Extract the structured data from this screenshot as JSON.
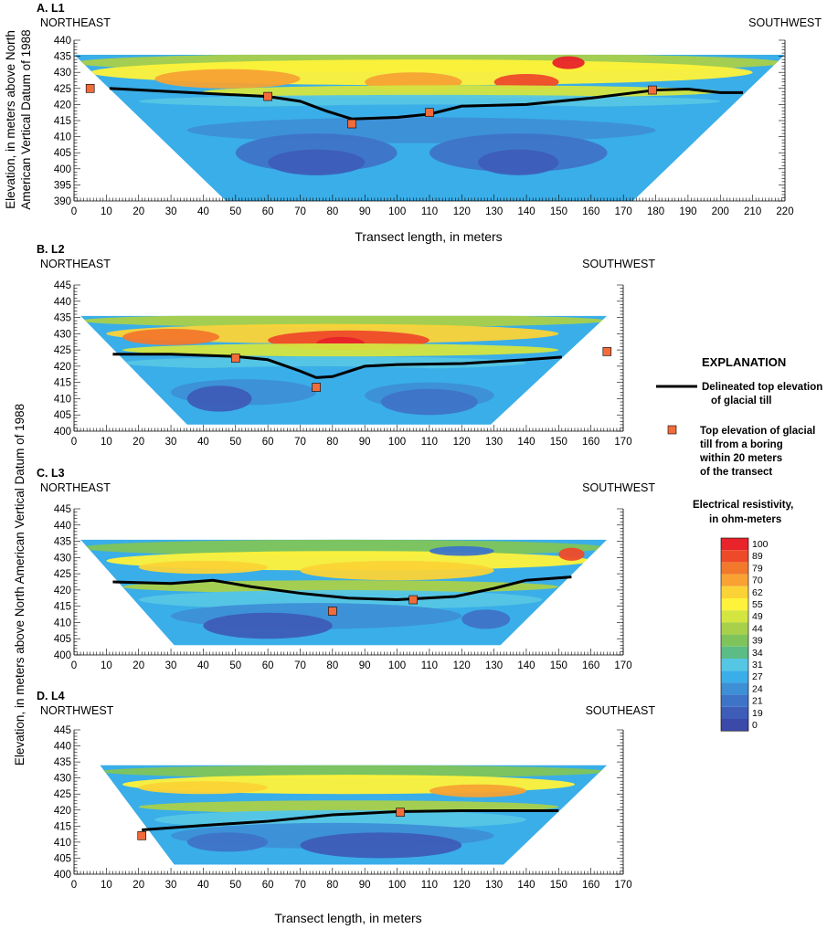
{
  "panels": [
    {
      "id": "A",
      "letter": "A.",
      "label": "L1",
      "left_direction": "NORTHEAST",
      "right_direction": "SOUTHWEST",
      "x_ticks": [
        0,
        10,
        20,
        30,
        40,
        50,
        60,
        70,
        80,
        90,
        100,
        110,
        120,
        130,
        140,
        150,
        160,
        170,
        180,
        190,
        200,
        210,
        220
      ],
      "y_ticks": [
        390,
        395,
        400,
        405,
        410,
        415,
        420,
        425,
        430,
        435,
        440
      ]
    },
    {
      "id": "B",
      "letter": "B.",
      "label": "L2",
      "left_direction": "NORTHEAST",
      "right_direction": "SOUTHWEST",
      "x_ticks": [
        0,
        10,
        20,
        30,
        40,
        50,
        60,
        70,
        80,
        90,
        100,
        110,
        120,
        130,
        140,
        150,
        160,
        170
      ],
      "y_ticks": [
        400,
        405,
        410,
        415,
        420,
        425,
        430,
        435,
        440,
        445
      ]
    },
    {
      "id": "C",
      "letter": "C.",
      "label": "L3",
      "left_direction": "NORTHEAST",
      "right_direction": "SOUTHWEST",
      "x_ticks": [
        0,
        10,
        20,
        30,
        40,
        50,
        60,
        70,
        80,
        90,
        100,
        110,
        120,
        130,
        140,
        150,
        160,
        170
      ],
      "y_ticks": [
        400,
        405,
        410,
        415,
        420,
        425,
        430,
        435,
        440,
        445
      ]
    },
    {
      "id": "D",
      "letter": "D.",
      "label": "L4",
      "left_direction": "NORTHWEST",
      "right_direction": "SOUTHEAST",
      "x_ticks": [
        0,
        10,
        20,
        30,
        40,
        50,
        60,
        70,
        80,
        90,
        100,
        110,
        120,
        130,
        140,
        150,
        160,
        170
      ],
      "y_ticks": [
        400,
        405,
        410,
        415,
        420,
        425,
        430,
        435,
        440,
        445
      ]
    }
  ],
  "axis_labels": {
    "x_label": "Transect length, in meters",
    "y_label_a_line1": "Elevation, in meters above North",
    "y_label_a_line2": "American Vertical Datum of 1988",
    "y_label_bcd": "Elevation, in meters above North American Vertical Datum of 1988"
  },
  "legend": {
    "title": "EXPLANATION",
    "line_label_1": "Delineated top elevation",
    "line_label_2": "of glacial till",
    "marker_label_1": "Top elevation of glacial",
    "marker_label_2": "till from a boring",
    "marker_label_3": "within 20 meters",
    "marker_label_4": "of the transect",
    "scale_title_1": "Electrical resistivity,",
    "scale_title_2": "in ohm-meters",
    "scale_values": [
      "100",
      "89",
      "79",
      "70",
      "62",
      "55",
      "49",
      "44",
      "39",
      "34",
      "31",
      "27",
      "24",
      "21",
      "19",
      "0"
    ],
    "scale_colors": [
      "#e8232a",
      "#ee4a2a",
      "#f2782c",
      "#f7a233",
      "#fbd336",
      "#fff23a",
      "#d5e53f",
      "#a9d04a",
      "#7fc45a",
      "#5cbc86",
      "#56c6e5",
      "#3aaee8",
      "#3d8fd6",
      "#3e74c8",
      "#3d5db8",
      "#3b49a8"
    ],
    "line_color": "#000000",
    "marker_color": "#f26b3a"
  },
  "chart_data": [
    {
      "type": "heatmap",
      "title": "L1",
      "xlabel": "Transect length, in meters",
      "ylabel": "Elevation, in meters above North American Vertical Datum of 1988",
      "xlim": [
        0,
        220
      ],
      "ylim": [
        390,
        440
      ],
      "section_outline": [
        [
          0,
          435.5
        ],
        [
          220,
          435.5
        ],
        [
          173,
          390
        ],
        [
          47,
          390
        ]
      ],
      "till_line": [
        [
          11,
          425
        ],
        [
          40,
          423.5
        ],
        [
          60,
          422.5
        ],
        [
          70,
          421
        ],
        [
          78,
          418
        ],
        [
          86,
          415.5
        ],
        [
          100,
          416
        ],
        [
          110,
          417
        ],
        [
          120,
          419.5
        ],
        [
          140,
          420
        ],
        [
          160,
          422
        ],
        [
          180,
          424.5
        ],
        [
          190,
          424.8
        ],
        [
          200,
          423.7
        ],
        [
          207,
          423.7
        ]
      ],
      "borings": [
        [
          5,
          425
        ],
        [
          60,
          422.5
        ],
        [
          86,
          414
        ],
        [
          110,
          417.5
        ],
        [
          179,
          424.5
        ]
      ]
    },
    {
      "type": "heatmap",
      "title": "L2",
      "xlabel": "Transect length, in meters",
      "ylabel": "Elevation, in meters above North American Vertical Datum of 1988",
      "xlim": [
        0,
        170
      ],
      "ylim": [
        400,
        445
      ],
      "section_outline": [
        [
          2,
          435.5
        ],
        [
          165,
          435.5
        ],
        [
          129,
          402
        ],
        [
          35,
          402
        ]
      ],
      "till_line": [
        [
          12,
          423.7
        ],
        [
          30,
          423.7
        ],
        [
          50,
          423
        ],
        [
          60,
          422
        ],
        [
          70,
          418.5
        ],
        [
          75,
          416.5
        ],
        [
          80,
          416.8
        ],
        [
          90,
          420
        ],
        [
          100,
          420.5
        ],
        [
          120,
          420.8
        ],
        [
          140,
          422
        ],
        [
          151,
          422.8
        ]
      ],
      "borings": [
        [
          50,
          422.5
        ],
        [
          75,
          413.5
        ],
        [
          165,
          424.5
        ]
      ]
    },
    {
      "type": "heatmap",
      "title": "L3",
      "xlabel": "Transect length, in meters",
      "ylabel": "Elevation, in meters above North American Vertical Datum of 1988",
      "xlim": [
        0,
        170
      ],
      "ylim": [
        400,
        445
      ],
      "section_outline": [
        [
          2,
          435.5
        ],
        [
          165,
          435.5
        ],
        [
          132,
          403
        ],
        [
          31,
          403
        ]
      ],
      "till_line": [
        [
          12,
          422.5
        ],
        [
          30,
          422
        ],
        [
          43,
          423
        ],
        [
          55,
          421
        ],
        [
          70,
          419
        ],
        [
          85,
          417.5
        ],
        [
          100,
          417
        ],
        [
          118,
          418
        ],
        [
          130,
          420.5
        ],
        [
          140,
          423
        ],
        [
          154,
          424
        ]
      ],
      "borings": [
        [
          80,
          413.5
        ],
        [
          105,
          417
        ]
      ]
    },
    {
      "type": "heatmap",
      "title": "L4",
      "xlabel": "Transect length, in meters",
      "ylabel": "Elevation, in meters above North American Vertical Datum of 1988",
      "xlim": [
        0,
        170
      ],
      "ylim": [
        400,
        445
      ],
      "section_outline": [
        [
          8,
          434
        ],
        [
          165,
          434
        ],
        [
          133,
          403
        ],
        [
          31,
          403
        ]
      ],
      "till_line": [
        [
          21,
          413.8
        ],
        [
          40,
          415.2
        ],
        [
          60,
          416.5
        ],
        [
          80,
          418.5
        ],
        [
          100,
          419.5
        ],
        [
          120,
          419.8
        ],
        [
          150,
          419.8
        ]
      ],
      "borings": [
        [
          21,
          412
        ],
        [
          101,
          419.3
        ]
      ]
    }
  ]
}
